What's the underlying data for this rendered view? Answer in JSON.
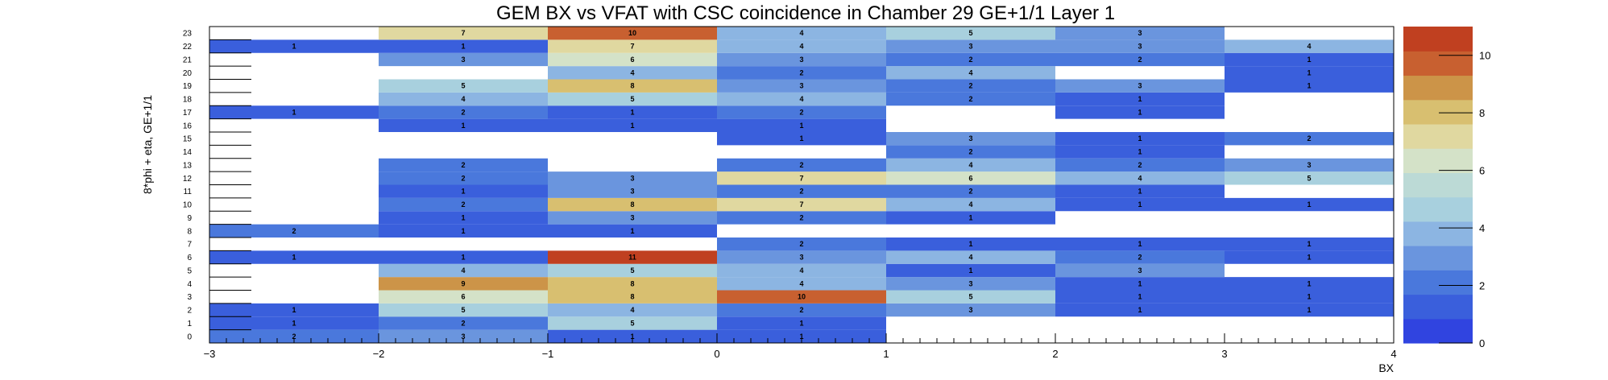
{
  "chart_data": {
    "type": "heatmap",
    "title": "GEM BX vs VFAT with CSC coincidence in Chamber 29 GE+1/1 Layer 1",
    "xlabel": "BX",
    "ylabel": "8*phi + eta, GE+1/1",
    "xlim": [
      -3,
      4
    ],
    "ylim": [
      0,
      24
    ],
    "x_ticks": [
      "−3",
      "−2",
      "−1",
      "0",
      "1",
      "2",
      "3",
      "4"
    ],
    "y_ticks": [
      "0",
      "1",
      "2",
      "3",
      "4",
      "5",
      "6",
      "7",
      "8",
      "9",
      "10",
      "11",
      "12",
      "13",
      "14",
      "15",
      "16",
      "17",
      "18",
      "19",
      "20",
      "21",
      "22",
      "23"
    ],
    "x_bins": [
      [
        -3,
        -2
      ],
      [
        -2,
        -1
      ],
      [
        -1,
        0
      ],
      [
        0,
        1
      ],
      [
        1,
        2
      ],
      [
        2,
        3
      ],
      [
        3,
        4
      ]
    ],
    "z_range": [
      0,
      11
    ],
    "z_ticks": [
      "0",
      "2",
      "4",
      "6",
      "8",
      "10"
    ],
    "cells": [
      {
        "x": 0,
        "y": 0,
        "v": 2
      },
      {
        "x": 1,
        "y": 0,
        "v": 3
      },
      {
        "x": 2,
        "y": 0,
        "v": 1
      },
      {
        "x": 3,
        "y": 0,
        "v": 1
      },
      {
        "x": 0,
        "y": 1,
        "v": 1
      },
      {
        "x": 1,
        "y": 1,
        "v": 2
      },
      {
        "x": 2,
        "y": 1,
        "v": 5
      },
      {
        "x": 3,
        "y": 1,
        "v": 1
      },
      {
        "x": 0,
        "y": 2,
        "v": 1
      },
      {
        "x": 1,
        "y": 2,
        "v": 5
      },
      {
        "x": 2,
        "y": 2,
        "v": 4
      },
      {
        "x": 3,
        "y": 2,
        "v": 2
      },
      {
        "x": 4,
        "y": 2,
        "v": 3
      },
      {
        "x": 5,
        "y": 2,
        "v": 1
      },
      {
        "x": 6,
        "y": 2,
        "v": 1
      },
      {
        "x": 1,
        "y": 3,
        "v": 6
      },
      {
        "x": 2,
        "y": 3,
        "v": 8
      },
      {
        "x": 3,
        "y": 3,
        "v": 10
      },
      {
        "x": 4,
        "y": 3,
        "v": 5
      },
      {
        "x": 5,
        "y": 3,
        "v": 1
      },
      {
        "x": 6,
        "y": 3,
        "v": 1
      },
      {
        "x": 1,
        "y": 4,
        "v": 9
      },
      {
        "x": 2,
        "y": 4,
        "v": 8
      },
      {
        "x": 3,
        "y": 4,
        "v": 4
      },
      {
        "x": 4,
        "y": 4,
        "v": 3
      },
      {
        "x": 5,
        "y": 4,
        "v": 1
      },
      {
        "x": 6,
        "y": 4,
        "v": 1
      },
      {
        "x": 1,
        "y": 5,
        "v": 4
      },
      {
        "x": 2,
        "y": 5,
        "v": 5
      },
      {
        "x": 3,
        "y": 5,
        "v": 4
      },
      {
        "x": 4,
        "y": 5,
        "v": 1
      },
      {
        "x": 5,
        "y": 5,
        "v": 3
      },
      {
        "x": 0,
        "y": 6,
        "v": 1
      },
      {
        "x": 1,
        "y": 6,
        "v": 1
      },
      {
        "x": 2,
        "y": 6,
        "v": 11
      },
      {
        "x": 3,
        "y": 6,
        "v": 3
      },
      {
        "x": 4,
        "y": 6,
        "v": 4
      },
      {
        "x": 5,
        "y": 6,
        "v": 2
      },
      {
        "x": 6,
        "y": 6,
        "v": 1
      },
      {
        "x": 3,
        "y": 7,
        "v": 2
      },
      {
        "x": 4,
        "y": 7,
        "v": 1
      },
      {
        "x": 5,
        "y": 7,
        "v": 1
      },
      {
        "x": 6,
        "y": 7,
        "v": 1
      },
      {
        "x": 0,
        "y": 8,
        "v": 2
      },
      {
        "x": 1,
        "y": 8,
        "v": 1
      },
      {
        "x": 2,
        "y": 8,
        "v": 1
      },
      {
        "x": 1,
        "y": 9,
        "v": 1
      },
      {
        "x": 2,
        "y": 9,
        "v": 3
      },
      {
        "x": 3,
        "y": 9,
        "v": 2
      },
      {
        "x": 4,
        "y": 9,
        "v": 1
      },
      {
        "x": 1,
        "y": 10,
        "v": 2
      },
      {
        "x": 2,
        "y": 10,
        "v": 8
      },
      {
        "x": 3,
        "y": 10,
        "v": 7
      },
      {
        "x": 4,
        "y": 10,
        "v": 4
      },
      {
        "x": 5,
        "y": 10,
        "v": 1
      },
      {
        "x": 6,
        "y": 10,
        "v": 1
      },
      {
        "x": 1,
        "y": 11,
        "v": 1
      },
      {
        "x": 2,
        "y": 11,
        "v": 3
      },
      {
        "x": 3,
        "y": 11,
        "v": 2
      },
      {
        "x": 4,
        "y": 11,
        "v": 2
      },
      {
        "x": 5,
        "y": 11,
        "v": 1
      },
      {
        "x": 1,
        "y": 12,
        "v": 2
      },
      {
        "x": 2,
        "y": 12,
        "v": 3
      },
      {
        "x": 3,
        "y": 12,
        "v": 7
      },
      {
        "x": 4,
        "y": 12,
        "v": 6
      },
      {
        "x": 5,
        "y": 12,
        "v": 4
      },
      {
        "x": 6,
        "y": 12,
        "v": 5
      },
      {
        "x": 1,
        "y": 13,
        "v": 2
      },
      {
        "x": 3,
        "y": 13,
        "v": 2
      },
      {
        "x": 4,
        "y": 13,
        "v": 4
      },
      {
        "x": 5,
        "y": 13,
        "v": 2
      },
      {
        "x": 6,
        "y": 13,
        "v": 3
      },
      {
        "x": 4,
        "y": 14,
        "v": 2
      },
      {
        "x": 5,
        "y": 14,
        "v": 1
      },
      {
        "x": 3,
        "y": 15,
        "v": 1
      },
      {
        "x": 4,
        "y": 15,
        "v": 3
      },
      {
        "x": 5,
        "y": 15,
        "v": 1
      },
      {
        "x": 6,
        "y": 15,
        "v": 2
      },
      {
        "x": 1,
        "y": 16,
        "v": 1
      },
      {
        "x": 2,
        "y": 16,
        "v": 1
      },
      {
        "x": 3,
        "y": 16,
        "v": 1
      },
      {
        "x": 0,
        "y": 17,
        "v": 1
      },
      {
        "x": 1,
        "y": 17,
        "v": 2
      },
      {
        "x": 2,
        "y": 17,
        "v": 1
      },
      {
        "x": 3,
        "y": 17,
        "v": 2
      },
      {
        "x": 5,
        "y": 17,
        "v": 1
      },
      {
        "x": 1,
        "y": 18,
        "v": 4
      },
      {
        "x": 2,
        "y": 18,
        "v": 5
      },
      {
        "x": 3,
        "y": 18,
        "v": 4
      },
      {
        "x": 4,
        "y": 18,
        "v": 2
      },
      {
        "x": 5,
        "y": 18,
        "v": 1
      },
      {
        "x": 1,
        "y": 19,
        "v": 5
      },
      {
        "x": 2,
        "y": 19,
        "v": 8
      },
      {
        "x": 3,
        "y": 19,
        "v": 3
      },
      {
        "x": 4,
        "y": 19,
        "v": 2
      },
      {
        "x": 5,
        "y": 19,
        "v": 3
      },
      {
        "x": 6,
        "y": 19,
        "v": 1
      },
      {
        "x": 2,
        "y": 20,
        "v": 4
      },
      {
        "x": 3,
        "y": 20,
        "v": 2
      },
      {
        "x": 4,
        "y": 20,
        "v": 4
      },
      {
        "x": 6,
        "y": 20,
        "v": 1
      },
      {
        "x": 1,
        "y": 21,
        "v": 3
      },
      {
        "x": 2,
        "y": 21,
        "v": 6
      },
      {
        "x": 3,
        "y": 21,
        "v": 3
      },
      {
        "x": 4,
        "y": 21,
        "v": 2
      },
      {
        "x": 5,
        "y": 21,
        "v": 2
      },
      {
        "x": 6,
        "y": 21,
        "v": 1
      },
      {
        "x": 0,
        "y": 22,
        "v": 1
      },
      {
        "x": 1,
        "y": 22,
        "v": 1
      },
      {
        "x": 2,
        "y": 22,
        "v": 7
      },
      {
        "x": 3,
        "y": 22,
        "v": 4
      },
      {
        "x": 4,
        "y": 22,
        "v": 3
      },
      {
        "x": 5,
        "y": 22,
        "v": 3
      },
      {
        "x": 6,
        "y": 22,
        "v": 4
      },
      {
        "x": 1,
        "y": 23,
        "v": 7
      },
      {
        "x": 2,
        "y": 23,
        "v": 10
      },
      {
        "x": 3,
        "y": 23,
        "v": 4
      },
      {
        "x": 4,
        "y": 23,
        "v": 5
      },
      {
        "x": 5,
        "y": 23,
        "v": 3
      }
    ],
    "palette": [
      "#3044e0",
      "#3a5fdc",
      "#4a78dc",
      "#6a95de",
      "#8cb5e2",
      "#a8d0de",
      "#bcdad6",
      "#d4e2c8",
      "#e0d8a0",
      "#d8bf70",
      "#cc9448",
      "#c86030",
      "#c04020"
    ],
    "grid": false,
    "legend": "color-bar-right"
  }
}
